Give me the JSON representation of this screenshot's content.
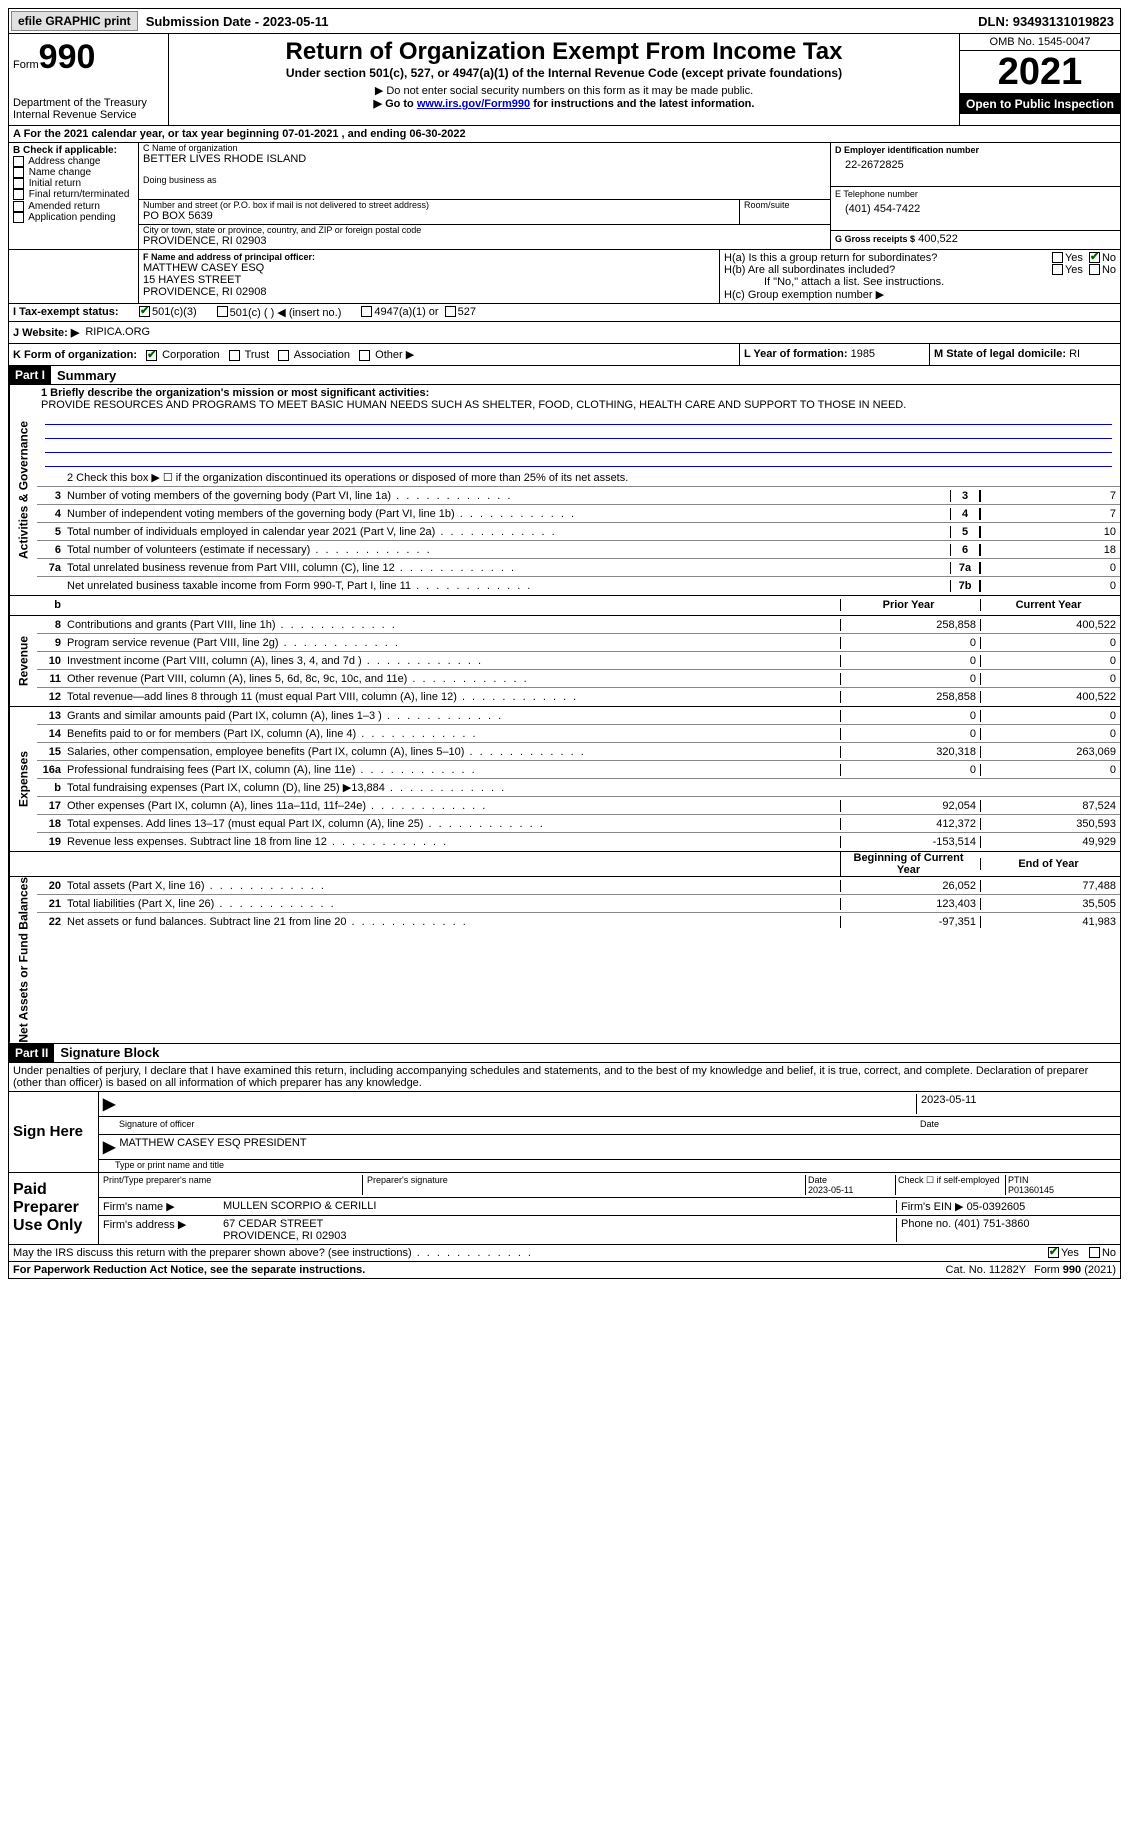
{
  "topbar": {
    "efile": "efile GRAPHIC print",
    "submission": "Submission Date - 2023-05-11",
    "dln": "DLN: 93493131019823"
  },
  "header": {
    "form_prefix": "Form",
    "form_number": "990",
    "dept": "Department of the Treasury",
    "irs": "Internal Revenue Service",
    "title": "Return of Organization Exempt From Income Tax",
    "subtitle": "Under section 501(c), 527, or 4947(a)(1) of the Internal Revenue Code (except private foundations)",
    "note1": "▶ Do not enter social security numbers on this form as it may be made public.",
    "note2_pre": "▶ Go to ",
    "note2_link": "www.irs.gov/Form990",
    "note2_post": " for instructions and the latest information.",
    "omb": "OMB No. 1545-0047",
    "year": "2021",
    "inspect": "Open to Public Inspection"
  },
  "sectionA": {
    "line": "A For the 2021 calendar year, or tax year beginning 07-01-2021    , and ending 06-30-2022"
  },
  "sectionB": {
    "label": "B Check if applicable:",
    "items": [
      "Address change",
      "Name change",
      "Initial return",
      "Final return/terminated",
      "Amended return",
      "Application pending"
    ]
  },
  "sectionC": {
    "name_label": "C Name of organization",
    "name": "BETTER LIVES RHODE ISLAND",
    "dba_label": "Doing business as",
    "dba": "",
    "street_label": "Number and street (or P.O. box if mail is not delivered to street address)",
    "room_label": "Room/suite",
    "street": "PO BOX 5639",
    "city_label": "City or town, state or province, country, and ZIP or foreign postal code",
    "city": "PROVIDENCE, RI  02903"
  },
  "sectionD": {
    "label": "D Employer identification number",
    "value": "22-2672825"
  },
  "sectionE": {
    "label": "E Telephone number",
    "value": "(401) 454-7422"
  },
  "sectionG": {
    "label": "G Gross receipts $",
    "value": "400,522"
  },
  "sectionF": {
    "label": "F Name and address of principal officer:",
    "name": "MATTHEW CASEY ESQ",
    "street": "15 HAYES STREET",
    "city": "PROVIDENCE, RI  02908"
  },
  "sectionH": {
    "a": "H(a)  Is this a group return for subordinates?",
    "b": "H(b)  Are all subordinates included?",
    "b_note": "If \"No,\" attach a list. See instructions.",
    "c": "H(c)  Group exemption number ▶",
    "yes": "Yes",
    "no": "No"
  },
  "sectionI": {
    "label": "I    Tax-exempt status:",
    "opt1": "501(c)(3)",
    "opt2": "501(c) (   ) ◀ (insert no.)",
    "opt3": "4947(a)(1) or",
    "opt4": "527"
  },
  "sectionJ": {
    "label": "J   Website: ▶",
    "value": "RIPICA.ORG"
  },
  "sectionK": {
    "label": "K Form of organization:",
    "opts": [
      "Corporation",
      "Trust",
      "Association",
      "Other ▶"
    ]
  },
  "sectionL": {
    "label": "L Year of formation:",
    "value": "1985"
  },
  "sectionM": {
    "label": "M State of legal domicile:",
    "value": "RI"
  },
  "part1": {
    "tag": "Part I",
    "title": "Summary",
    "line1_label": "1  Briefly describe the organization's mission or most significant activities:",
    "mission": "PROVIDE RESOURCES AND PROGRAMS TO MEET BASIC HUMAN NEEDS SUCH AS SHELTER, FOOD, CLOTHING, HEALTH CARE AND SUPPORT TO THOSE IN NEED.",
    "line2": "2   Check this box ▶ ☐ if the organization discontinued its operations or disposed of more than 25% of its net assets.",
    "side_labels": {
      "gov": "Activities & Governance",
      "rev": "Revenue",
      "exp": "Expenses",
      "net": "Net Assets or Fund Balances"
    },
    "cols": {
      "prior": "Prior Year",
      "current": "Current Year",
      "beg": "Beginning of Current Year",
      "end": "End of Year"
    },
    "gov_lines": [
      {
        "n": "3",
        "d": "Number of voting members of the governing body (Part VI, line 1a)",
        "box": "3",
        "v": "7"
      },
      {
        "n": "4",
        "d": "Number of independent voting members of the governing body (Part VI, line 1b)",
        "box": "4",
        "v": "7"
      },
      {
        "n": "5",
        "d": "Total number of individuals employed in calendar year 2021 (Part V, line 2a)",
        "box": "5",
        "v": "10"
      },
      {
        "n": "6",
        "d": "Total number of volunteers (estimate if necessary)",
        "box": "6",
        "v": "18"
      },
      {
        "n": "7a",
        "d": "Total unrelated business revenue from Part VIII, column (C), line 12",
        "box": "7a",
        "v": "0"
      },
      {
        "n": "",
        "d": "Net unrelated business taxable income from Form 990-T, Part I, line 11",
        "box": "7b",
        "v": "0"
      }
    ],
    "rev_lines": [
      {
        "n": "8",
        "d": "Contributions and grants (Part VIII, line 1h)",
        "p": "258,858",
        "c": "400,522"
      },
      {
        "n": "9",
        "d": "Program service revenue (Part VIII, line 2g)",
        "p": "0",
        "c": "0"
      },
      {
        "n": "10",
        "d": "Investment income (Part VIII, column (A), lines 3, 4, and 7d )",
        "p": "0",
        "c": "0"
      },
      {
        "n": "11",
        "d": "Other revenue (Part VIII, column (A), lines 5, 6d, 8c, 9c, 10c, and 11e)",
        "p": "0",
        "c": "0"
      },
      {
        "n": "12",
        "d": "Total revenue—add lines 8 through 11 (must equal Part VIII, column (A), line 12)",
        "p": "258,858",
        "c": "400,522"
      }
    ],
    "exp_lines": [
      {
        "n": "13",
        "d": "Grants and similar amounts paid (Part IX, column (A), lines 1–3 )",
        "p": "0",
        "c": "0"
      },
      {
        "n": "14",
        "d": "Benefits paid to or for members (Part IX, column (A), line 4)",
        "p": "0",
        "c": "0"
      },
      {
        "n": "15",
        "d": "Salaries, other compensation, employee benefits (Part IX, column (A), lines 5–10)",
        "p": "320,318",
        "c": "263,069"
      },
      {
        "n": "16a",
        "d": "Professional fundraising fees (Part IX, column (A), line 11e)",
        "p": "0",
        "c": "0"
      },
      {
        "n": "b",
        "d": "Total fundraising expenses (Part IX, column (D), line 25) ▶13,884",
        "p": "",
        "c": "",
        "grey": true
      },
      {
        "n": "17",
        "d": "Other expenses (Part IX, column (A), lines 11a–11d, 11f–24e)",
        "p": "92,054",
        "c": "87,524"
      },
      {
        "n": "18",
        "d": "Total expenses. Add lines 13–17 (must equal Part IX, column (A), line 25)",
        "p": "412,372",
        "c": "350,593"
      },
      {
        "n": "19",
        "d": "Revenue less expenses. Subtract line 18 from line 12",
        "p": "-153,514",
        "c": "49,929"
      }
    ],
    "net_lines": [
      {
        "n": "20",
        "d": "Total assets (Part X, line 16)",
        "p": "26,052",
        "c": "77,488"
      },
      {
        "n": "21",
        "d": "Total liabilities (Part X, line 26)",
        "p": "123,403",
        "c": "35,505"
      },
      {
        "n": "22",
        "d": "Net assets or fund balances. Subtract line 21 from line 20",
        "p": "-97,351",
        "c": "41,983"
      }
    ]
  },
  "part2": {
    "tag": "Part II",
    "title": "Signature Block",
    "decl": "Under penalties of perjury, I declare that I have examined this return, including accompanying schedules and statements, and to the best of my knowledge and belief, it is true, correct, and complete. Declaration of preparer (other than officer) is based on all information of which preparer has any knowledge.",
    "sign_here": "Sign Here",
    "sig_officer": "Signature of officer",
    "sig_date": "2023-05-11",
    "date_label": "Date",
    "officer_name": "MATTHEW CASEY ESQ  PRESIDENT",
    "name_title_label": "Type or print name and title",
    "paid": "Paid Preparer Use Only",
    "prep_name_label": "Print/Type preparer's name",
    "prep_sig_label": "Preparer's signature",
    "prep_date_label": "Date",
    "prep_date": "2023-05-11",
    "check_if": "Check ☐ if self-employed",
    "ptin_label": "PTIN",
    "ptin": "P01360145",
    "firm_name_label": "Firm's name    ▶",
    "firm_name": "MULLEN SCORPIO & CERILLI",
    "firm_ein_label": "Firm's EIN ▶",
    "firm_ein": "05-0392605",
    "firm_addr_label": "Firm's address ▶",
    "firm_addr1": "67 CEDAR STREET",
    "firm_addr2": "PROVIDENCE, RI  02903",
    "phone_label": "Phone no.",
    "phone": "(401) 751-3860",
    "may_irs": "May the IRS discuss this return with the preparer shown above? (see instructions)",
    "yes": "Yes",
    "no": "No"
  },
  "footer": {
    "pra": "For Paperwork Reduction Act Notice, see the separate instructions.",
    "cat": "Cat. No. 11282Y",
    "form": "Form 990 (2021)"
  }
}
